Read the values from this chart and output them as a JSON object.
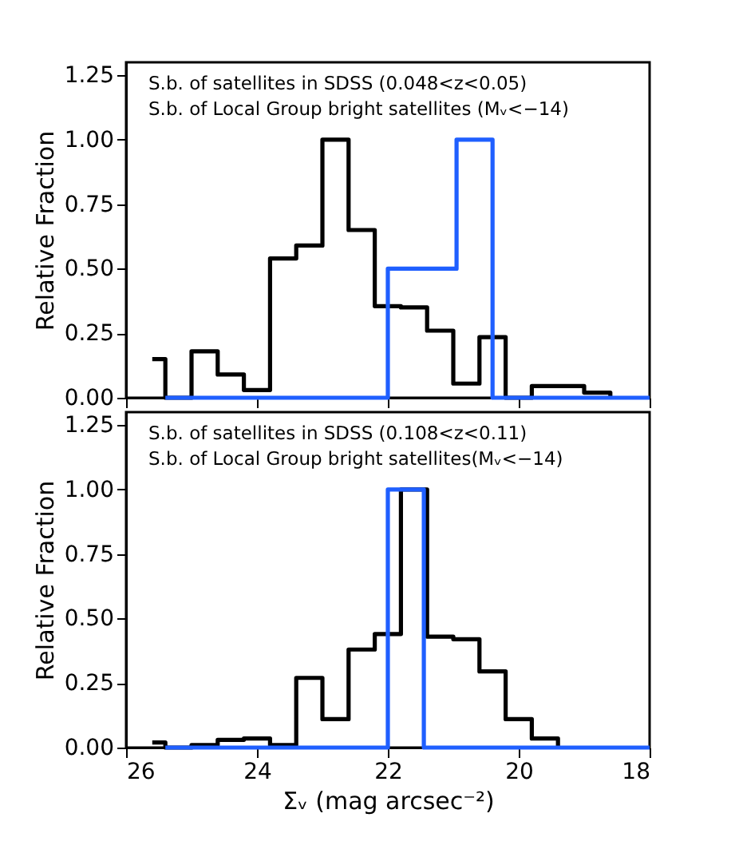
{
  "chart_data": [
    {
      "type": "step",
      "xlim": [
        26,
        18
      ],
      "xticks": [
        26,
        24,
        22,
        20,
        18
      ],
      "ylim": [
        0,
        1.3
      ],
      "yticks": [
        {
          "value": 0,
          "label": "0.00"
        },
        {
          "value": 0.25,
          "label": "0.25"
        },
        {
          "value": 0.5,
          "label": "0.50"
        },
        {
          "value": 0.75,
          "label": "0.75"
        },
        {
          "value": 1,
          "label": "1.00"
        },
        {
          "value": 1.25,
          "label": "1.25"
        }
      ],
      "ylabel": "Relative Fraction",
      "tick_labels": "y",
      "annotations": [
        "S.b. of satellites in SDSS (0.048<z<0.05)",
        "S.b. of Local Group bright satellites (Mᵥ<−14)"
      ],
      "series": [
        {
          "color": "#000000",
          "x": [
            25.6,
            25.4,
            25.0,
            24.6,
            24.2,
            23.8,
            23.4,
            23.0,
            22.6,
            22.2,
            21.8,
            21.4,
            21.0,
            20.6,
            20.2,
            19.8,
            19.4,
            19.0,
            18.6
          ],
          "values": [
            0.15,
            0,
            0.18,
            0.09,
            0.03,
            0.54,
            0.59,
            1.0,
            0.65,
            0.355,
            0.35,
            0.26,
            0.055,
            0.235,
            0,
            0.045,
            0.045,
            0.02,
            0
          ]
        },
        {
          "color": "#1f5fff",
          "x": [
            25.4,
            22.0,
            20.95,
            20.4,
            18.0
          ],
          "values": [
            0,
            0.5,
            1.0,
            0,
            0
          ]
        }
      ]
    },
    {
      "type": "step",
      "xlim": [
        26,
        18
      ],
      "xticks": [
        26,
        24,
        22,
        20,
        18
      ],
      "ylim": [
        0,
        1.3
      ],
      "yticks": [
        {
          "value": 0,
          "label": "0.00"
        },
        {
          "value": 0.25,
          "label": "0.25"
        },
        {
          "value": 0.5,
          "label": "0.50"
        },
        {
          "value": 0.75,
          "label": "0.75"
        },
        {
          "value": 1,
          "label": "1.00"
        },
        {
          "value": 1.25,
          "label": "1.25"
        }
      ],
      "ylabel": "Relative Fraction",
      "xlabel": "Σᵥ (mag arcsec⁻²)",
      "annotations": [
        "S.b. of satellites in SDSS (0.108<z<0.11)",
        "S.b. of Local Group bright satellites(Mᵥ<−14)"
      ],
      "series": [
        {
          "color": "#000000",
          "x": [
            25.6,
            25.4,
            25.0,
            24.6,
            24.2,
            23.8,
            23.4,
            23.0,
            22.6,
            22.2,
            21.8,
            21.4,
            21.0,
            20.6,
            20.2,
            19.8,
            19.4
          ],
          "values": [
            0.02,
            0,
            0.01,
            0.03,
            0.035,
            0.01,
            0.27,
            0.11,
            0.38,
            0.44,
            1.0,
            0.43,
            0.42,
            0.295,
            0.11,
            0.035,
            0
          ]
        },
        {
          "color": "#1f5fff",
          "x": [
            25.4,
            22.0,
            21.45,
            18.0
          ],
          "values": [
            0,
            1.0,
            0,
            0
          ]
        }
      ]
    }
  ]
}
